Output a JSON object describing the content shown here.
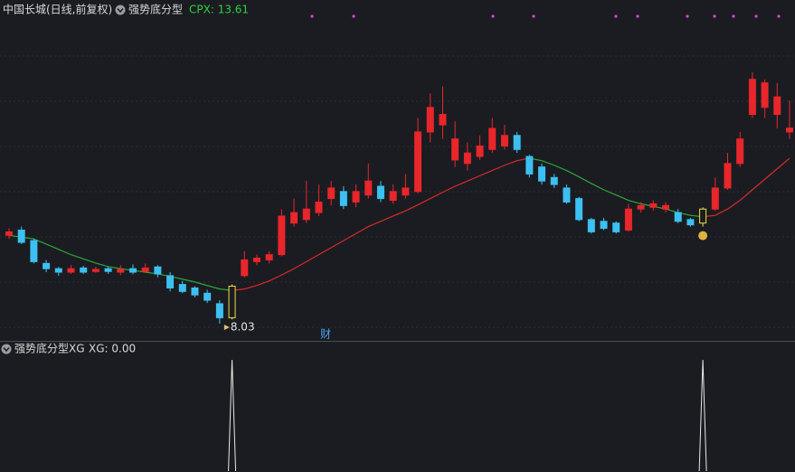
{
  "header": {
    "stock": "中国长城(日线,前复权)",
    "indicator": "强势底分型",
    "indicator_value": "CPX: 13.61"
  },
  "chart_data": {
    "type": "candlestick",
    "open": [
      10.55,
      10.7,
      10.4,
      9.75,
      9.6,
      9.5,
      9.62,
      9.52,
      9.6,
      9.5,
      9.6,
      9.52,
      9.65,
      9.4,
      9.15,
      9.05,
      8.9,
      8.6,
      8.2,
      9.4,
      9.8,
      9.85,
      10.0,
      10.9,
      11.0,
      11.2,
      11.6,
      11.8,
      11.5,
      11.7,
      11.95,
      11.55,
      11.7,
      11.8,
      13.5,
      13.7,
      12.7,
      12.6,
      12.8,
      13.0,
      13.1,
      13.4,
      12.8,
      12.5,
      12.2,
      11.9,
      11.6,
      11.0,
      10.95,
      10.9,
      10.7,
      11.3,
      11.35,
      11.3,
      11.2,
      11.0,
      10.9,
      11.3,
      11.9,
      12.6,
      14.0,
      14.2,
      14.0,
      13.5
    ],
    "high": [
      10.75,
      10.8,
      10.45,
      9.85,
      9.65,
      9.7,
      9.68,
      9.65,
      9.66,
      9.7,
      9.72,
      9.75,
      9.7,
      9.5,
      9.25,
      9.1,
      9.0,
      8.7,
      9.15,
      10.1,
      10.0,
      10.1,
      11.3,
      11.6,
      12.1,
      12.0,
      12.1,
      11.95,
      12.0,
      12.6,
      12.1,
      12.0,
      12.3,
      13.9,
      14.6,
      14.8,
      13.8,
      13.2,
      13.4,
      13.9,
      13.7,
      13.5,
      12.85,
      12.6,
      12.3,
      12.0,
      11.65,
      11.05,
      11.05,
      10.95,
      11.45,
      11.5,
      11.55,
      11.5,
      11.3,
      11.05,
      11.35,
      12.2,
      12.9,
      13.5,
      15.2,
      15.0,
      14.9,
      14.4
    ],
    "low": [
      10.45,
      10.3,
      9.75,
      9.5,
      9.4,
      9.45,
      9.45,
      9.48,
      9.45,
      9.42,
      9.44,
      9.48,
      9.35,
      8.95,
      8.9,
      8.78,
      8.62,
      8.03,
      8.15,
      9.35,
      9.7,
      9.75,
      9.95,
      10.8,
      10.9,
      11.1,
      11.4,
      11.3,
      11.35,
      11.6,
      11.5,
      11.45,
      11.6,
      11.75,
      13.2,
      13.3,
      12.5,
      12.4,
      12.7,
      12.9,
      13.0,
      12.9,
      12.2,
      12.0,
      11.9,
      11.45,
      10.95,
      10.6,
      10.7,
      10.6,
      10.65,
      11.2,
      11.25,
      11.2,
      10.9,
      10.8,
      10.8,
      11.25,
      11.85,
      12.5,
      13.9,
      13.9,
      13.6,
      13.3
    ],
    "close": [
      10.65,
      10.35,
      9.8,
      9.6,
      9.5,
      9.6,
      9.5,
      9.58,
      9.52,
      9.58,
      9.5,
      9.62,
      9.45,
      9.05,
      8.95,
      8.85,
      8.7,
      8.2,
      9.1,
      9.85,
      9.9,
      10.0,
      11.1,
      11.2,
      11.3,
      11.5,
      11.9,
      11.4,
      11.8,
      12.1,
      11.6,
      11.8,
      11.9,
      13.5,
      14.2,
      14.0,
      13.3,
      12.9,
      13.1,
      13.6,
      13.4,
      13.0,
      12.3,
      12.1,
      12.0,
      11.5,
      11.0,
      10.65,
      10.75,
      10.65,
      11.3,
      11.4,
      11.45,
      11.4,
      10.95,
      10.85,
      11.3,
      11.9,
      12.6,
      13.3,
      15.0,
      14.9,
      14.5,
      13.61
    ],
    "line": [
      10.55,
      10.5,
      10.45,
      10.3,
      10.15,
      10.0,
      9.88,
      9.76,
      9.66,
      9.6,
      9.55,
      9.5,
      9.45,
      9.38,
      9.3,
      9.22,
      9.12,
      9.02,
      8.98,
      9.02,
      9.12,
      9.25,
      9.42,
      9.6,
      9.8,
      10.0,
      10.2,
      10.4,
      10.6,
      10.8,
      10.95,
      11.1,
      11.25,
      11.42,
      11.6,
      11.78,
      11.95,
      12.1,
      12.25,
      12.4,
      12.55,
      12.68,
      12.75,
      12.68,
      12.55,
      12.4,
      12.22,
      12.03,
      11.85,
      11.7,
      11.55,
      11.45,
      11.38,
      11.3,
      11.2,
      11.12,
      11.08,
      11.12,
      11.3,
      11.55,
      11.85,
      12.15,
      12.45,
      12.75
    ],
    "up_color": "#e8262b",
    "down_color": "#3cc0f2",
    "signal_color": "#f0e040",
    "line_up_color": "#d52a2a",
    "line_down_color": "#2aa83a",
    "low_annotation": 8.03,
    "finance_mark": "财"
  },
  "sub_panel": {
    "title": "强势底分型XG",
    "value_text": "XG: 0.00",
    "xg": [
      0,
      0,
      0,
      0,
      0,
      0,
      0,
      0,
      0,
      0,
      0,
      0,
      0,
      0,
      0,
      0,
      0,
      0,
      1,
      0,
      0,
      0,
      0,
      0,
      0,
      0,
      0,
      0,
      0,
      0,
      0,
      0,
      0,
      0,
      0,
      0,
      0,
      0,
      0,
      0,
      0,
      0,
      0,
      0,
      0,
      0,
      0,
      0,
      0,
      0,
      0,
      0,
      0,
      0,
      0,
      0,
      1,
      0,
      0,
      0,
      0,
      0,
      0,
      0
    ],
    "color": "#e8e8e8"
  }
}
